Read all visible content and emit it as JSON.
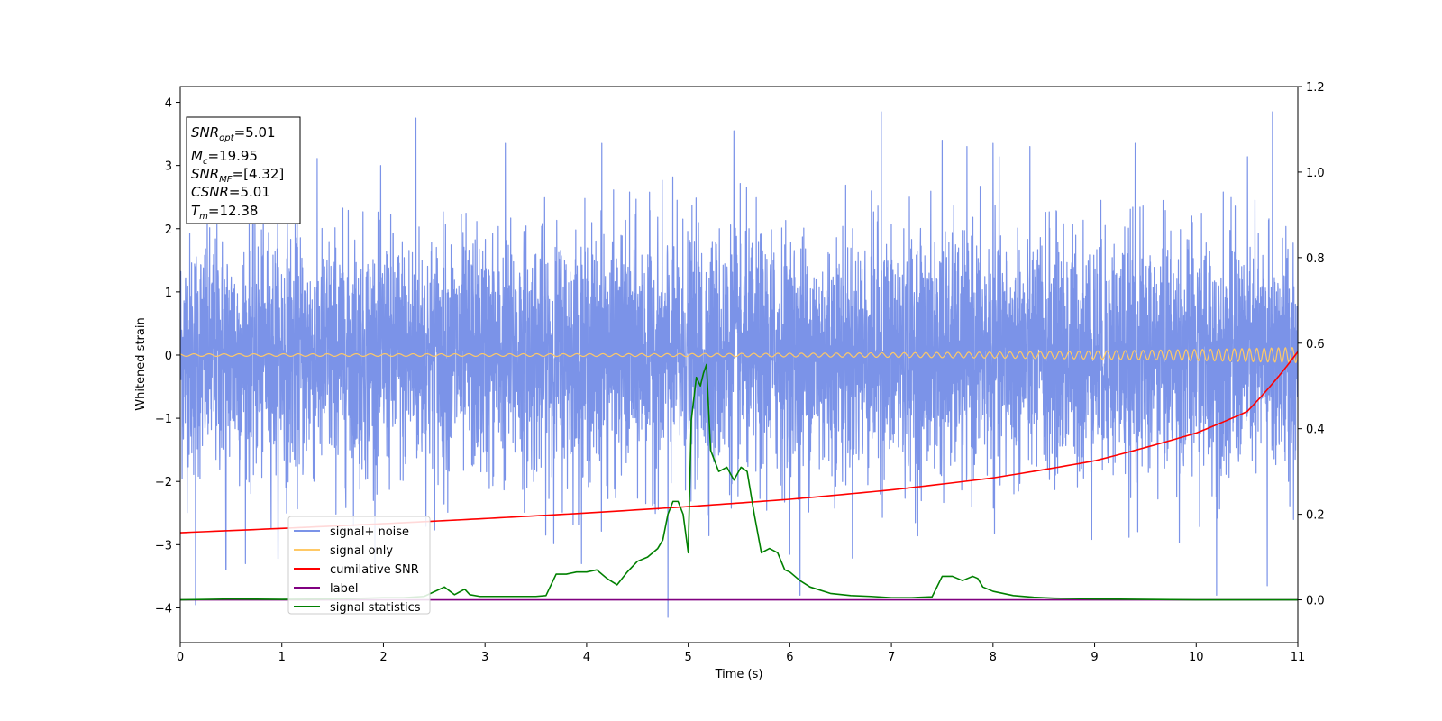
{
  "chart_data": {
    "type": "line",
    "xlabel": "Time (s)",
    "ylabel_left": "Whitened strain",
    "ylabel_right": "",
    "xlim": [
      0,
      11
    ],
    "ylim_left": [
      -4.55,
      4.25
    ],
    "ylim_right": [
      -0.1,
      1.2
    ],
    "x_ticks": [
      0,
      1,
      2,
      3,
      4,
      5,
      6,
      7,
      8,
      9,
      10,
      11
    ],
    "y_left_ticks": [
      -4,
      -3,
      -2,
      -1,
      0,
      1,
      2,
      3,
      4
    ],
    "y_right_ticks": [
      0.0,
      0.2,
      0.4,
      0.6,
      0.8,
      1.0,
      1.2
    ],
    "y_left_tick_labels": [
      "−4",
      "−3",
      "−2",
      "−1",
      "0",
      "1",
      "2",
      "3",
      "4"
    ],
    "y_right_tick_labels": [
      "0.0",
      "0.2",
      "0.4",
      "0.6",
      "0.8",
      "1.0",
      "1.2"
    ],
    "x_tick_labels": [
      "0",
      "1",
      "2",
      "3",
      "4",
      "5",
      "6",
      "7",
      "8",
      "9",
      "10",
      "11"
    ],
    "grid": false,
    "legend_location": "lower-left",
    "info_box": {
      "snr_opt": "=5.01",
      "mc": "=19.95",
      "snr_mf": "=[4.32]",
      "csnr": "=5.01",
      "tm": "=12.38"
    },
    "series": [
      {
        "name": "signal+ noise",
        "color": "#7b93e8",
        "axis": "left",
        "kind": "noise",
        "mean": 0.0,
        "std": 0.95,
        "extremes": [
          {
            "x": 0.15,
            "y": -3.95
          },
          {
            "x": 0.45,
            "y": -3.4
          },
          {
            "x": 2.32,
            "y": 3.75
          },
          {
            "x": 4.8,
            "y": -4.15
          },
          {
            "x": 6.9,
            "y": 3.85
          },
          {
            "x": 10.75,
            "y": 3.85
          },
          {
            "x": 10.2,
            "y": -3.8
          },
          {
            "x": 10.7,
            "y": -3.65
          },
          {
            "x": 4.15,
            "y": 3.35
          },
          {
            "x": 6.1,
            "y": -3.8
          },
          {
            "x": 7.5,
            "y": 3.4
          },
          {
            "x": 8.0,
            "y": 3.35
          },
          {
            "x": 9.4,
            "y": 3.35
          },
          {
            "x": 3.2,
            "y": 3.35
          },
          {
            "x": 5.45,
            "y": 3.55
          }
        ]
      },
      {
        "name": "signal only",
        "color": "#ffc966",
        "axis": "left",
        "kind": "chirp",
        "amplitude_start": 0.02,
        "amplitude_end": 0.12
      },
      {
        "name": "cumilative SNR",
        "color": "#ff0000",
        "axis": "right",
        "kind": "line",
        "x": [
          0,
          1,
          2,
          3,
          4,
          5,
          6,
          7,
          8,
          9,
          10,
          10.5,
          11
        ],
        "y": [
          0.157,
          0.167,
          0.178,
          0.19,
          0.203,
          0.218,
          0.235,
          0.257,
          0.285,
          0.325,
          0.39,
          0.44,
          0.58
        ]
      },
      {
        "name": "label",
        "color": "#800080",
        "axis": "right",
        "kind": "line",
        "x": [
          0,
          11
        ],
        "y": [
          0.0,
          0.0
        ]
      },
      {
        "name": "signal statistics",
        "color": "#008000",
        "axis": "right",
        "kind": "line",
        "x": [
          0,
          0.5,
          1.0,
          1.5,
          2.0,
          2.2,
          2.4,
          2.6,
          2.7,
          2.8,
          2.85,
          2.95,
          3.1,
          3.3,
          3.5,
          3.6,
          3.7,
          3.8,
          3.9,
          4.0,
          4.1,
          4.2,
          4.3,
          4.4,
          4.5,
          4.6,
          4.7,
          4.75,
          4.8,
          4.85,
          4.9,
          4.95,
          5.0,
          5.03,
          5.08,
          5.12,
          5.15,
          5.18,
          5.22,
          5.3,
          5.38,
          5.45,
          5.52,
          5.58,
          5.65,
          5.72,
          5.8,
          5.88,
          5.95,
          6.0,
          6.1,
          6.2,
          6.4,
          6.6,
          6.8,
          7.0,
          7.2,
          7.4,
          7.5,
          7.6,
          7.7,
          7.8,
          7.85,
          7.9,
          8.0,
          8.2,
          8.4,
          8.6,
          8.8,
          9.0,
          9.5,
          10.0,
          11.0
        ],
        "y": [
          0.0,
          0.002,
          0.001,
          0.002,
          0.005,
          0.005,
          0.008,
          0.03,
          0.012,
          0.025,
          0.012,
          0.008,
          0.008,
          0.008,
          0.008,
          0.01,
          0.06,
          0.06,
          0.065,
          0.065,
          0.07,
          0.05,
          0.035,
          0.065,
          0.09,
          0.1,
          0.12,
          0.14,
          0.2,
          0.23,
          0.23,
          0.2,
          0.11,
          0.42,
          0.52,
          0.5,
          0.53,
          0.55,
          0.35,
          0.3,
          0.31,
          0.28,
          0.31,
          0.3,
          0.2,
          0.11,
          0.12,
          0.11,
          0.07,
          0.065,
          0.045,
          0.03,
          0.015,
          0.01,
          0.008,
          0.005,
          0.005,
          0.007,
          0.055,
          0.055,
          0.045,
          0.055,
          0.05,
          0.03,
          0.02,
          0.01,
          0.006,
          0.004,
          0.003,
          0.002,
          0.001,
          0.0,
          0.0
        ]
      }
    ]
  }
}
